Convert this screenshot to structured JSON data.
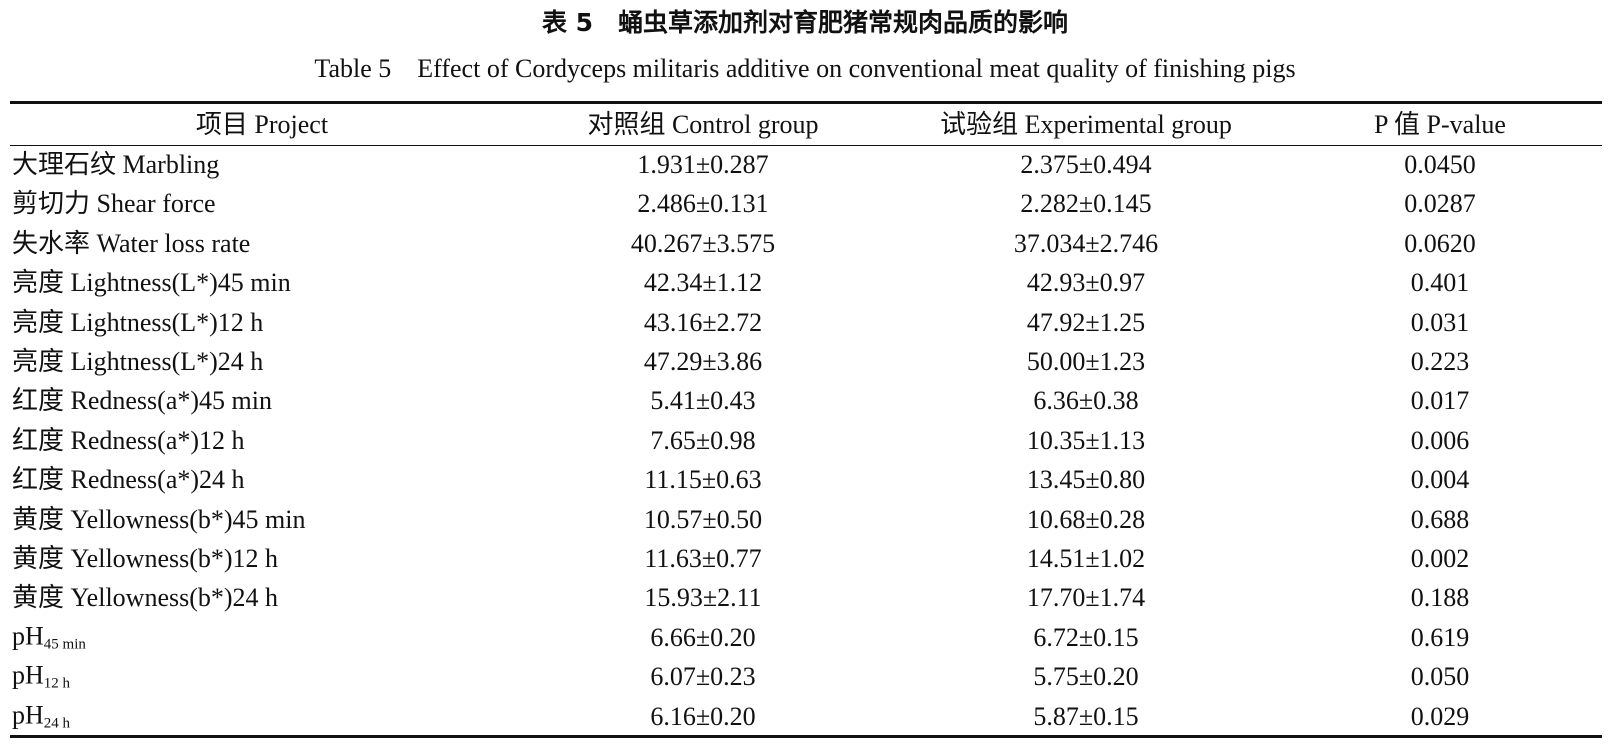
{
  "title": "表 5　蛹虫草添加剂对育肥猪常规肉品质的影响",
  "subtitle": "Table 5　Effect of Cordyceps militaris additive on conventional meat quality of finishing pigs",
  "table": {
    "header": [
      "项目 Project",
      "对照组 Control group",
      "试验组 Experimental group",
      "P 值 P-value"
    ],
    "rows": [
      [
        {
          "main": "大理石纹 Marbling"
        },
        "1.931±0.287",
        "2.375±0.494",
        "0.0450"
      ],
      [
        {
          "main": "剪切力 Shear force"
        },
        "2.486±0.131",
        "2.282±0.145",
        "0.0287"
      ],
      [
        {
          "main": "失水率 Water loss rate"
        },
        "40.267±3.575",
        "37.034±2.746",
        "0.0620"
      ],
      [
        {
          "main": "亮度 Lightness(L*)45 min"
        },
        "42.34±1.12",
        "42.93±0.97",
        "0.401"
      ],
      [
        {
          "main": "亮度 Lightness(L*)12 h"
        },
        "43.16±2.72",
        "47.92±1.25",
        "0.031"
      ],
      [
        {
          "main": "亮度 Lightness(L*)24 h"
        },
        "47.29±3.86",
        "50.00±1.23",
        "0.223"
      ],
      [
        {
          "main": "红度 Redness(a*)45 min"
        },
        "5.41±0.43",
        "6.36±0.38",
        "0.017"
      ],
      [
        {
          "main": "红度 Redness(a*)12 h"
        },
        "7.65±0.98",
        "10.35±1.13",
        "0.006"
      ],
      [
        {
          "main": "红度 Redness(a*)24 h"
        },
        "11.15±0.63",
        "13.45±0.80",
        "0.004"
      ],
      [
        {
          "main": "黄度 Yellowness(b*)45 min"
        },
        "10.57±0.50",
        "10.68±0.28",
        "0.688"
      ],
      [
        {
          "main": "黄度 Yellowness(b*)12 h"
        },
        "11.63±0.77",
        "14.51±1.02",
        "0.002"
      ],
      [
        {
          "main": "黄度 Yellowness(b*)24 h"
        },
        "15.93±2.11",
        "17.70±1.74",
        "0.188"
      ],
      [
        {
          "main": "pH",
          "sub": "45 min"
        },
        "6.66±0.20",
        "6.72±0.15",
        "0.619"
      ],
      [
        {
          "main": "pH",
          "sub": "12 h"
        },
        "6.07±0.23",
        "5.75±0.20",
        "0.050"
      ],
      [
        {
          "main": "pH",
          "sub": "24 h"
        },
        "6.16±0.20",
        "5.87±0.15",
        "0.029"
      ]
    ]
  }
}
